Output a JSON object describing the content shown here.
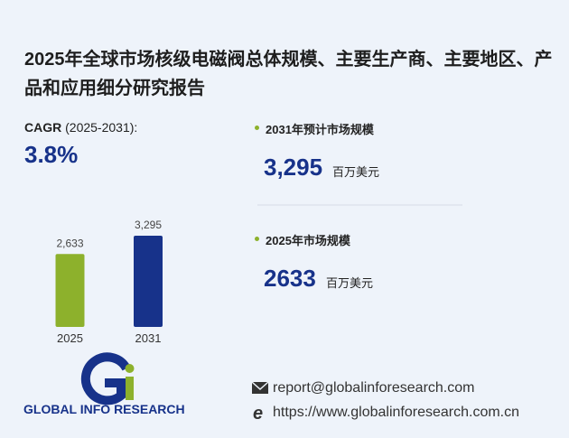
{
  "title": "2025年全球市场核级电磁阀总体规模、主要生产商、主要地区、产品和应用细分研究报告",
  "cagr": {
    "label": "CAGR",
    "period": "(2025-2031):",
    "value": "3.8%"
  },
  "chart_data": {
    "type": "bar",
    "categories": [
      "2025",
      "2031"
    ],
    "values": [
      2633,
      3295
    ],
    "value_labels": [
      "2,633",
      "3,295"
    ],
    "colors": [
      "#8db12c",
      "#17328a"
    ]
  },
  "stats": [
    {
      "label": "2031年预计市场规模",
      "value": "3,295",
      "unit": "百万美元"
    },
    {
      "label": "2025年市场规模",
      "value": "2633",
      "unit": "百万美元"
    }
  ],
  "brand": "GLOBAL INFO RESEARCH",
  "contact": {
    "email": "report@globalinforesearch.com",
    "website": "https://www.globalinforesearch.com.cn"
  }
}
